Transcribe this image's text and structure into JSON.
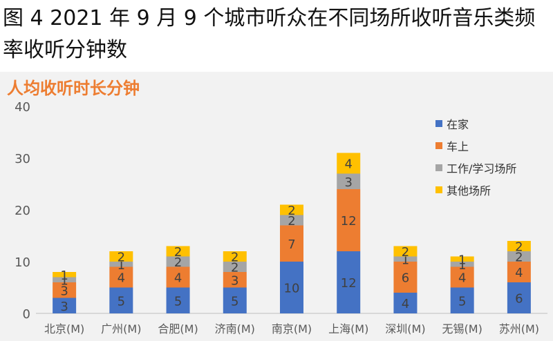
{
  "figure_title": "图 4 2021 年 9 月 9 个城市听众在不同场所收听音乐类频率收听分钟数",
  "chart_data": {
    "type": "bar",
    "stacked": true,
    "title": "人均收听时长分钟",
    "xlabel": "",
    "ylabel": "",
    "ylim": [
      0,
      40
    ],
    "yticks": [
      0,
      10,
      20,
      30,
      40
    ],
    "grid": false,
    "legend_position": "right",
    "categories": [
      "北京(M)",
      "广州(M)",
      "合肥(M)",
      "济南(M)",
      "南京(M)",
      "上海(M)",
      "深圳(M)",
      "无锡(M)",
      "苏州(M)"
    ],
    "series": [
      {
        "name": "在家",
        "color": "#4472c4",
        "values": [
          3,
          5,
          5,
          5,
          10,
          12,
          4,
          5,
          6
        ]
      },
      {
        "name": "车上",
        "color": "#ed7d31",
        "values": [
          3,
          4,
          4,
          3,
          7,
          12,
          6,
          4,
          4
        ]
      },
      {
        "name": "工作/学习场所",
        "color": "#a5a5a5",
        "values": [
          1,
          1,
          2,
          2,
          2,
          3,
          1,
          1,
          2
        ]
      },
      {
        "name": "其他场所",
        "color": "#ffc000",
        "values": [
          1,
          2,
          2,
          2,
          2,
          4,
          2,
          1,
          2
        ]
      }
    ],
    "colors": {
      "axis": "#bfbfbf",
      "tick_label": "#595959",
      "data_label": "#404040",
      "title": "#ed7d31"
    }
  }
}
